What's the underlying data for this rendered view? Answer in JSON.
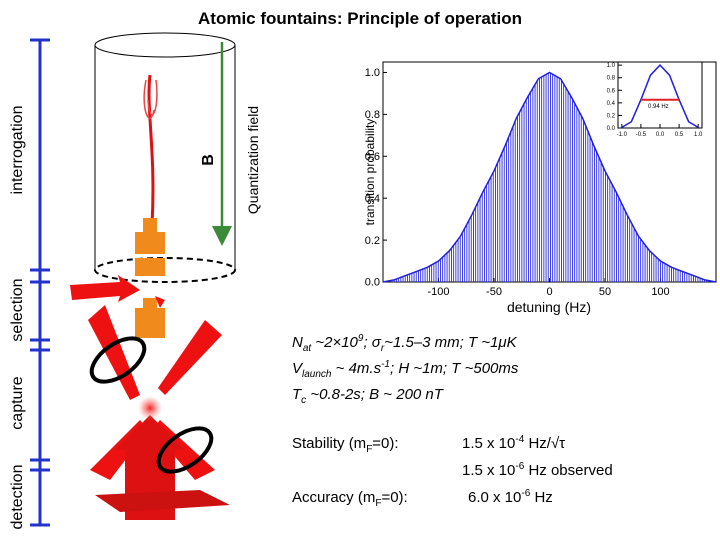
{
  "header": {
    "title": "Atomic fountains: Principle of operation"
  },
  "stages": [
    "interrogation",
    "selection",
    "capture",
    "detection"
  ],
  "field": {
    "symbol": "B",
    "label": "Quantization field"
  },
  "chart_data": {
    "type": "line",
    "xlabel": "detuning (Hz)",
    "ylabel": "transition probability",
    "x": [
      -150,
      -140,
      -130,
      -120,
      -110,
      -100,
      -90,
      -80,
      -70,
      -60,
      -50,
      -40,
      -30,
      -20,
      -10,
      0,
      10,
      20,
      30,
      40,
      50,
      60,
      70,
      80,
      90,
      100,
      110,
      120,
      130,
      140,
      150
    ],
    "series": [
      {
        "color": "#1f1fdf",
        "values": [
          0,
          0.01,
          0.03,
          0.05,
          0.07,
          0.1,
          0.15,
          0.22,
          0.32,
          0.43,
          0.53,
          0.65,
          0.78,
          0.88,
          0.97,
          1.0,
          0.97,
          0.88,
          0.78,
          0.65,
          0.53,
          0.43,
          0.32,
          0.22,
          0.15,
          0.1,
          0.07,
          0.05,
          0.03,
          0.01,
          0
        ]
      }
    ],
    "xlim": [
      -150,
      150
    ],
    "ylim": [
      0,
      1.05
    ],
    "xticks": [
      -100,
      -50,
      0,
      50,
      100
    ],
    "yticks": [
      {
        "value": 0,
        "label": "0.0"
      },
      {
        "value": 0.2,
        "label": "0.2"
      },
      {
        "value": 0.4,
        "label": "0.4"
      },
      {
        "value": 0.6,
        "label": "0.6"
      },
      {
        "value": 0.8,
        "label": "0.8"
      },
      {
        "value": 1,
        "label": "1.0"
      }
    ],
    "inset": {
      "annotation": "0.94 Hz",
      "x": [
        -1,
        -0.75,
        -0.5,
        -0.25,
        0,
        0.25,
        0.5,
        0.75,
        1
      ],
      "values": [
        0.01,
        0.1,
        0.45,
        0.84,
        1.0,
        0.84,
        0.45,
        0.1,
        0.01
      ],
      "xlim": [
        -1.1,
        1.1
      ],
      "ylim": [
        0,
        1.05
      ],
      "xticks": [
        {
          "value": -1,
          "label": "-1.0"
        },
        {
          "value": -0.5,
          "label": "-0.5"
        },
        {
          "value": 0,
          "label": "0.0"
        },
        {
          "value": 0.5,
          "label": "0.5"
        },
        {
          "value": 1,
          "label": "1.0"
        }
      ],
      "yticks": [
        {
          "value": 0,
          "label": "0.0"
        },
        {
          "value": 0.2,
          "label": "0.2"
        },
        {
          "value": 0.4,
          "label": "0.4"
        },
        {
          "value": 0.6,
          "label": "0.6"
        },
        {
          "value": 0.8,
          "label": "0.8"
        },
        {
          "value": 1,
          "label": "1.0"
        }
      ]
    }
  },
  "parameters": [
    [
      "N",
      "at",
      " ~2×10",
      "9",
      ";   σ",
      "r",
      "~1.5–3 mm;   T ~1μK"
    ],
    [
      "V",
      "launch",
      " ~ 4m.s",
      "-1",
      ";   H ~1m;   T ~500ms"
    ],
    [
      "T",
      "c",
      " ~0.8-2s;     B ~ 200 nT"
    ]
  ],
  "results": {
    "stability_label": [
      "Stability (m",
      "F",
      "=0):"
    ],
    "stability_values": [
      [
        "1.5 x 10",
        "-4",
        " Hz/√τ"
      ],
      [
        "1.5 x 10",
        "-6",
        " Hz observed"
      ]
    ],
    "accuracy_label": [
      "Accuracy (m",
      "F",
      "=0):"
    ],
    "accuracy_value": [
      "6.0 x 10",
      "-6",
      " Hz"
    ]
  }
}
